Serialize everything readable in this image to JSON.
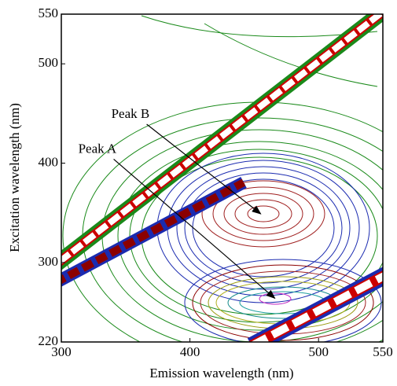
{
  "chart_data": {
    "type": "contour",
    "xlabel": "Emission wavelength (nm)",
    "ylabel": "Excitation wavelength (nm)",
    "xlim": [
      300,
      550
    ],
    "xticks": [
      300,
      400,
      500,
      550
    ],
    "ylim": [
      220,
      550
    ],
    "yticks": [
      220,
      300,
      400,
      500,
      550
    ],
    "annotations": [
      {
        "text": "Peak A",
        "x": 466,
        "y": 264
      },
      {
        "text": "Peak B",
        "x": 455,
        "y": 349
      }
    ]
  }
}
